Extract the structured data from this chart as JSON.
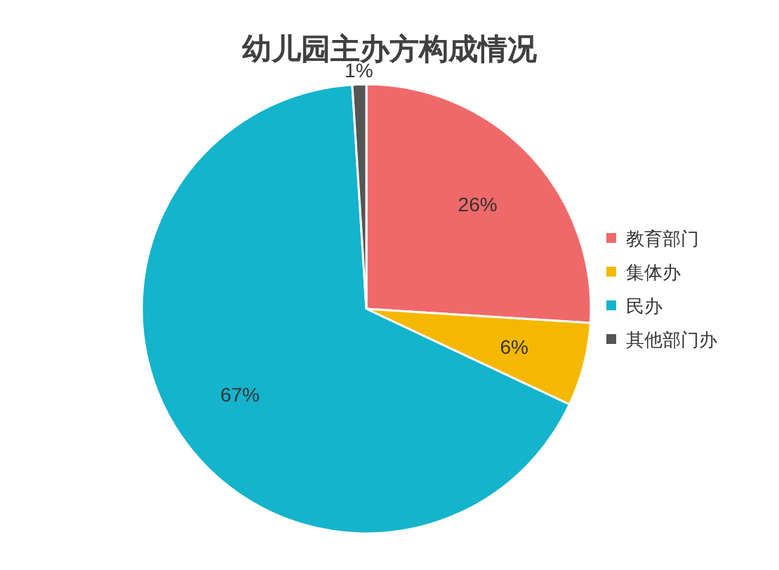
{
  "chart_data": {
    "type": "pie",
    "title": "幼儿园主办方构成情况",
    "categories": [
      "教育部门",
      "集体办",
      "民办",
      "其他部门办"
    ],
    "values": [
      26,
      6,
      67,
      1
    ],
    "colors": [
      "#f0696a",
      "#f5b800",
      "#14b4cc",
      "#555555"
    ],
    "value_labels": [
      "26%",
      "6%",
      "67%",
      "1%"
    ],
    "legend": "right"
  }
}
